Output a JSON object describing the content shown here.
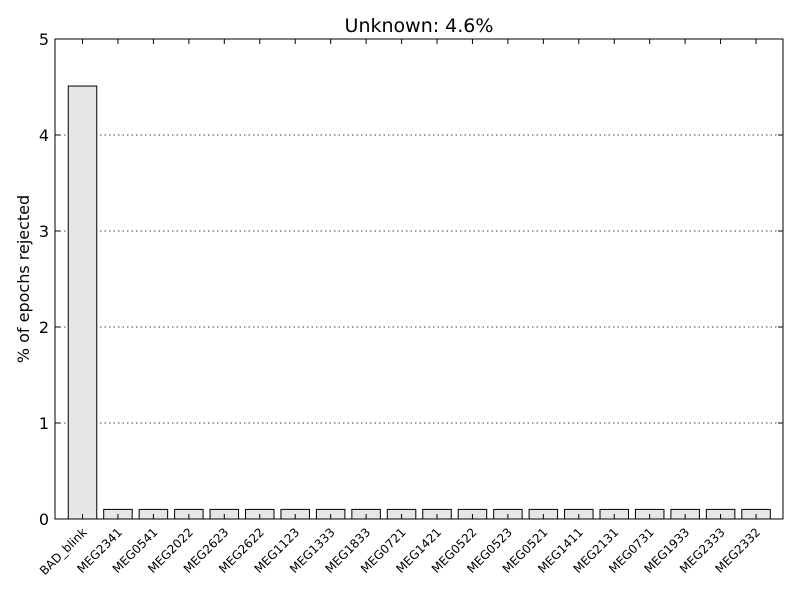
{
  "chart_data": {
    "type": "bar",
    "title": "Unknown: 4.6%",
    "xlabel": "",
    "ylabel": "% of epochs rejected",
    "ylim": [
      0,
      5
    ],
    "yticks": [
      0,
      1,
      2,
      3,
      4,
      5
    ],
    "grid": "y-dotted",
    "categories": [
      "BAD_blink",
      "MEG2341",
      "MEG0541",
      "MEG2022",
      "MEG2623",
      "MEG2622",
      "MEG1123",
      "MEG1333",
      "MEG1833",
      "MEG0721",
      "MEG1421",
      "MEG0522",
      "MEG0523",
      "MEG0521",
      "MEG1411",
      "MEG2131",
      "MEG0731",
      "MEG1933",
      "MEG2333",
      "MEG2332"
    ],
    "values": [
      4.51,
      0.1,
      0.1,
      0.1,
      0.1,
      0.1,
      0.1,
      0.1,
      0.1,
      0.1,
      0.1,
      0.1,
      0.1,
      0.1,
      0.1,
      0.1,
      0.1,
      0.1,
      0.1,
      0.1
    ],
    "bar_color": "#e6e6e6",
    "edge_color": "#000000"
  }
}
